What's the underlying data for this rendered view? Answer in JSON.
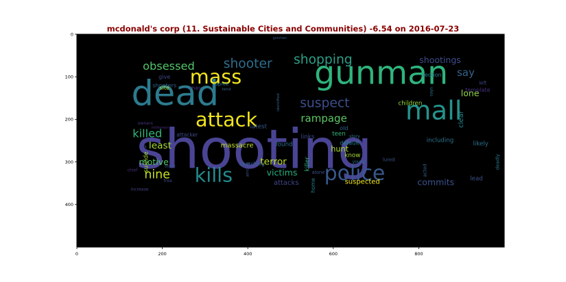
{
  "chart_data": {
    "type": "wordcloud",
    "title": "mcdonald's corp (11. Sustainable Cities and Communities) -6.54 on 2016-07-23",
    "title_color": "#8b0000",
    "background": "#000000",
    "xlim": [
      0,
      1000
    ],
    "ylim": [
      500,
      0
    ],
    "x_ticks": [
      0,
      200,
      400,
      600,
      800
    ],
    "y_ticks": [
      0,
      100,
      200,
      300,
      400
    ],
    "words": [
      {
        "text": "shooting",
        "x": 415,
        "y": 270,
        "size": 128,
        "color": "#4a4494"
      },
      {
        "text": "gunman",
        "x": 712,
        "y": 92,
        "size": 76,
        "color": "#2fb47c"
      },
      {
        "text": "dead",
        "x": 230,
        "y": 140,
        "size": 82,
        "color": "#2c7b8e"
      },
      {
        "text": "mall",
        "x": 835,
        "y": 180,
        "size": 62,
        "color": "#25938b"
      },
      {
        "text": "police",
        "x": 650,
        "y": 327,
        "size": 48,
        "color": "#38588c"
      },
      {
        "text": "kills",
        "x": 320,
        "y": 330,
        "size": 46,
        "color": "#238a8d"
      },
      {
        "text": "attack",
        "x": 350,
        "y": 200,
        "size": 46,
        "color": "#f1e51d"
      },
      {
        "text": "mass",
        "x": 325,
        "y": 100,
        "size": 46,
        "color": "#f4e61e"
      },
      {
        "text": "shooter",
        "x": 400,
        "y": 70,
        "size": 30,
        "color": "#2d6e8e"
      },
      {
        "text": "shopping",
        "x": 576,
        "y": 60,
        "size": 30,
        "color": "#2e9f86"
      },
      {
        "text": "suspect",
        "x": 580,
        "y": 162,
        "size": 30,
        "color": "#3d4e8a"
      },
      {
        "text": "obsessed",
        "x": 215,
        "y": 75,
        "size": 26,
        "color": "#52c569"
      },
      {
        "text": "nine",
        "x": 188,
        "y": 330,
        "size": 28,
        "color": "#c6e020"
      },
      {
        "text": "killed",
        "x": 165,
        "y": 233,
        "size": 26,
        "color": "#31b57b"
      },
      {
        "text": "rampage",
        "x": 578,
        "y": 198,
        "size": 24,
        "color": "#5dc863"
      },
      {
        "text": "shootings",
        "x": 850,
        "y": 60,
        "size": 20,
        "color": "#3e4c8a"
      },
      {
        "text": "say",
        "x": 910,
        "y": 90,
        "size": 24,
        "color": "#33638d"
      },
      {
        "text": "lone",
        "x": 920,
        "y": 138,
        "size": 20,
        "color": "#8fd744"
      },
      {
        "text": "least",
        "x": 195,
        "y": 262,
        "size": 22,
        "color": "#a8db34"
      },
      {
        "text": "massacre",
        "x": 375,
        "y": 262,
        "size": 16,
        "color": "#c2df23"
      },
      {
        "text": "motive",
        "x": 180,
        "y": 300,
        "size": 20,
        "color": "#50c46a"
      },
      {
        "text": "terror",
        "x": 460,
        "y": 300,
        "size": 22,
        "color": "#bddf26"
      },
      {
        "text": "victims",
        "x": 480,
        "y": 325,
        "size": 20,
        "color": "#28ae80"
      },
      {
        "text": "suspected",
        "x": 668,
        "y": 347,
        "size": 16,
        "color": "#f1e51d"
      },
      {
        "text": "commits",
        "x": 840,
        "y": 347,
        "size": 20,
        "color": "#3b528b"
      },
      {
        "text": "attacks",
        "x": 490,
        "y": 350,
        "size": 16,
        "color": "#3f4788"
      },
      {
        "text": "hunt",
        "x": 615,
        "y": 270,
        "size": 18,
        "color": "#addc30"
      },
      {
        "text": "children",
        "x": 780,
        "y": 163,
        "size": 14,
        "color": "#98d83e"
      },
      {
        "text": "including",
        "x": 850,
        "y": 250,
        "size": 14,
        "color": "#2c738e"
      },
      {
        "text": "latest",
        "x": 425,
        "y": 218,
        "size": 14,
        "color": "#375a8c"
      },
      {
        "text": "links",
        "x": 540,
        "y": 242,
        "size": 14,
        "color": "#3e4989"
      },
      {
        "text": "found",
        "x": 485,
        "y": 260,
        "size": 14,
        "color": "#2e6f8e"
      },
      {
        "text": "teen",
        "x": 613,
        "y": 235,
        "size": 14,
        "color": "#31b57b"
      },
      {
        "text": "default",
        "x": 638,
        "y": 255,
        "size": 13,
        "color": "#25848e"
      },
      {
        "text": "know",
        "x": 645,
        "y": 285,
        "size": 14,
        "color": "#a5db36"
      },
      {
        "text": "clear",
        "x": 900,
        "y": 200,
        "size": 16,
        "color": "#238a8d"
      },
      {
        "text": "likely",
        "x": 945,
        "y": 258,
        "size": 14,
        "color": "#2c728e"
      },
      {
        "text": "lead",
        "x": 935,
        "y": 340,
        "size": 14,
        "color": "#3b528b"
      },
      {
        "text": "shooters",
        "x": 205,
        "y": 120,
        "size": 13,
        "color": "#34618d"
      },
      {
        "text": "give",
        "x": 205,
        "y": 100,
        "size": 13,
        "color": "#3f4788"
      },
      {
        "text": "site",
        "x": 205,
        "y": 125,
        "size": 13,
        "color": "#a0da39"
      },
      {
        "text": "may",
        "x": 278,
        "y": 125,
        "size": 13,
        "color": "#443a83"
      },
      {
        "text": "spree",
        "x": 340,
        "y": 117,
        "size": 11,
        "color": "#2a788e"
      },
      {
        "text": "tend",
        "x": 350,
        "y": 130,
        "size": 9,
        "color": "#33638d"
      },
      {
        "text": "section",
        "x": 830,
        "y": 95,
        "size": 13,
        "color": "#277f8e"
      },
      {
        "text": "left",
        "x": 950,
        "y": 115,
        "size": 11,
        "color": "#3f4889"
      },
      {
        "text": "template",
        "x": 938,
        "y": 130,
        "size": 13,
        "color": "#46307e"
      },
      {
        "text": "attacker",
        "x": 258,
        "y": 236,
        "size": 12,
        "color": "#3e4a89"
      },
      {
        "text": "owners",
        "x": 160,
        "y": 210,
        "size": 10,
        "color": "#463480"
      },
      {
        "text": "millionen",
        "x": 195,
        "y": 220,
        "size": 9,
        "color": "#472d7b"
      },
      {
        "text": "link",
        "x": 155,
        "y": 265,
        "size": 10,
        "color": "#3e4989"
      },
      {
        "text": "suicide",
        "x": 163,
        "y": 300,
        "size": 14,
        "color": "#a2da37"
      },
      {
        "text": "state",
        "x": 218,
        "y": 310,
        "size": 10,
        "color": "#3b528b"
      },
      {
        "text": "killer",
        "x": 540,
        "y": 305,
        "size": 14,
        "color": "#2db27d"
      },
      {
        "text": "home",
        "x": 553,
        "y": 355,
        "size": 12,
        "color": "#25848e"
      },
      {
        "text": "alone",
        "x": 565,
        "y": 325,
        "size": 11,
        "color": "#3b528b"
      },
      {
        "text": "searching",
        "x": 410,
        "y": 305,
        "size": 12,
        "color": "#35608d"
      },
      {
        "text": "among",
        "x": 400,
        "y": 318,
        "size": 10,
        "color": "#3a548c"
      },
      {
        "text": "says",
        "x": 830,
        "y": 135,
        "size": 10,
        "color": "#2b748e"
      },
      {
        "text": "old",
        "x": 625,
        "y": 220,
        "size": 13,
        "color": "#33638d"
      },
      {
        "text": "story",
        "x": 650,
        "y": 240,
        "size": 10,
        "color": "#2a768e"
      },
      {
        "text": "young",
        "x": 660,
        "y": 300,
        "size": 10,
        "color": "#2c728e"
      },
      {
        "text": "lured",
        "x": 730,
        "y": 295,
        "size": 11,
        "color": "#3b528b"
      },
      {
        "text": "acted",
        "x": 815,
        "y": 320,
        "size": 11,
        "color": "#33638d"
      },
      {
        "text": "deadly",
        "x": 985,
        "y": 300,
        "size": 11,
        "color": "#2a788e"
      },
      {
        "text": "chief",
        "x": 130,
        "y": 320,
        "size": 10,
        "color": "#472f7d"
      },
      {
        "text": "free",
        "x": 213,
        "y": 345,
        "size": 10,
        "color": "#3e4989"
      },
      {
        "text": "increase",
        "x": 147,
        "y": 365,
        "size": 10,
        "color": "#414487"
      },
      {
        "text": "identified",
        "x": 472,
        "y": 160,
        "size": 9,
        "color": "#31688e"
      },
      {
        "text": "gunmen",
        "x": 475,
        "y": 10,
        "size": 8,
        "color": "#3b528b"
      }
    ]
  }
}
